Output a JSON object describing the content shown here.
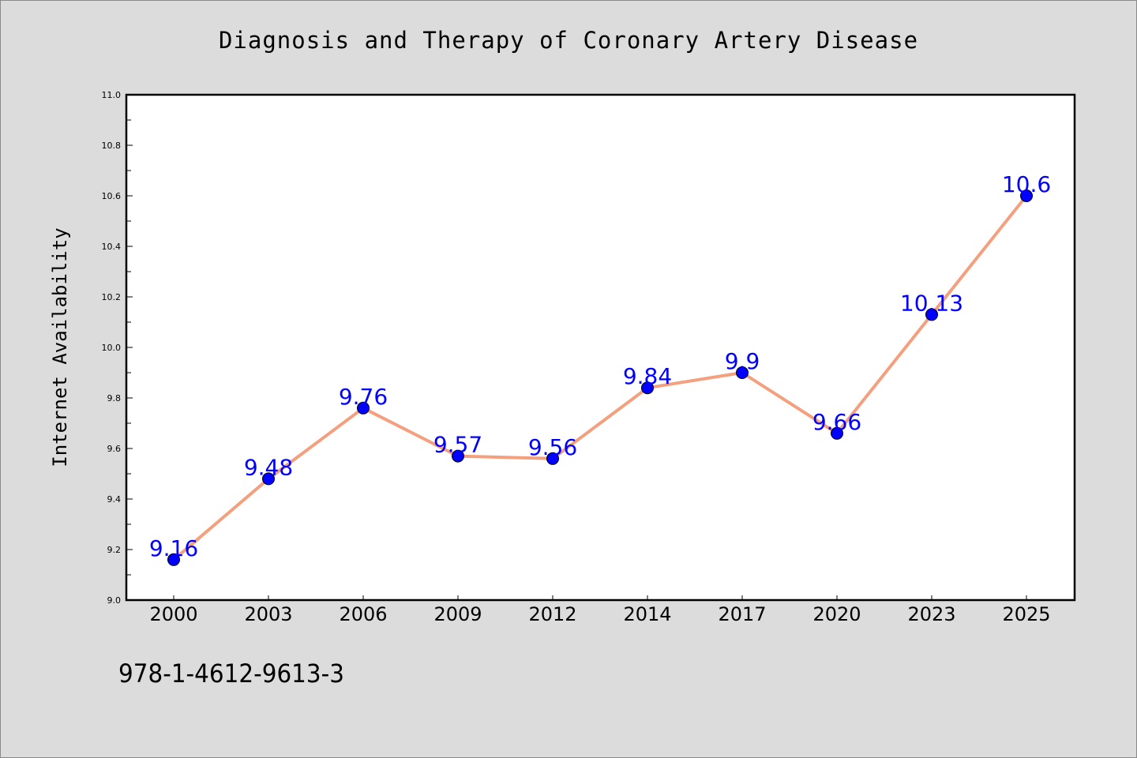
{
  "chart_data": {
    "type": "line",
    "title": "Diagnosis and Therapy of Coronary Artery Disease",
    "xlabel": "",
    "ylabel": "Internet Availability",
    "categories": [
      "2000",
      "2003",
      "2006",
      "2009",
      "2012",
      "2014",
      "2017",
      "2020",
      "2023",
      "2025"
    ],
    "series": [
      {
        "values": [
          9.16,
          9.48,
          9.76,
          9.57,
          9.56,
          9.84,
          9.9,
          9.66,
          10.13,
          10.6
        ],
        "line_color": "#f4a07e",
        "marker_color": "#0000ff"
      }
    ],
    "ylim": [
      9.0,
      11.0
    ],
    "y_ticks": [
      "9.0",
      "9.2",
      "9.4",
      "9.6",
      "9.8",
      "10.0",
      "10.2",
      "10.4",
      "10.6",
      "10.8",
      "11.0"
    ],
    "grid": false,
    "data_labels": [
      "9.16",
      "9.48",
      "9.76",
      "9.57",
      "9.56",
      "9.84",
      "9.9",
      "9.66",
      "10.13",
      "10.6"
    ]
  },
  "footer": {
    "isbn": "978-1-4612-9613-3"
  }
}
